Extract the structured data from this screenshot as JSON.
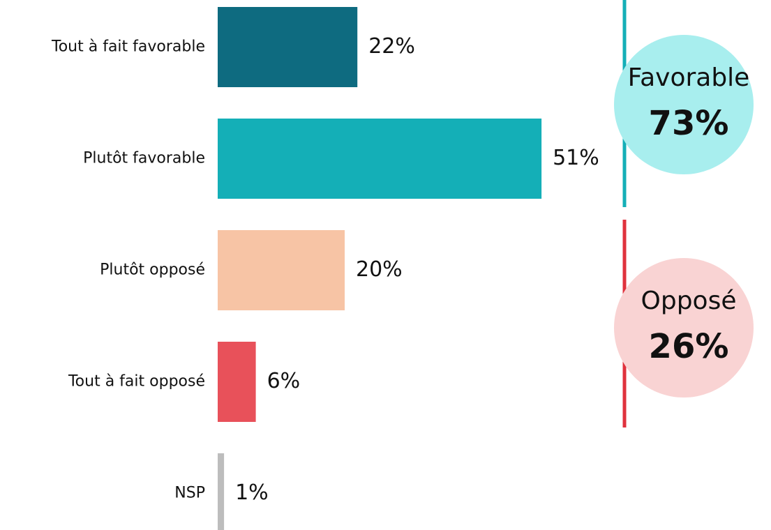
{
  "chart_data": {
    "type": "bar",
    "categories": [
      "Tout à fait favorable",
      "Plutôt favorable",
      "Plutôt opposé",
      "Tout à fait opposé",
      "NSP"
    ],
    "values": [
      22,
      51,
      20,
      6,
      1
    ],
    "value_labels": [
      "22%",
      "51%",
      "20%",
      "6%",
      "1%"
    ],
    "colors": [
      "#0e6b80",
      "#14afb7",
      "#f7c4a5",
      "#e8515a",
      "#bdbdbd"
    ],
    "groups": [
      {
        "label": "Favorable",
        "value": 73,
        "value_label": "73%",
        "color": "#a8eeee",
        "line_color": "#14afb7"
      },
      {
        "label": "Opposé",
        "value": 26,
        "value_label": "26%",
        "color": "#f9d3d3",
        "line_color": "#e0323d"
      }
    ]
  }
}
